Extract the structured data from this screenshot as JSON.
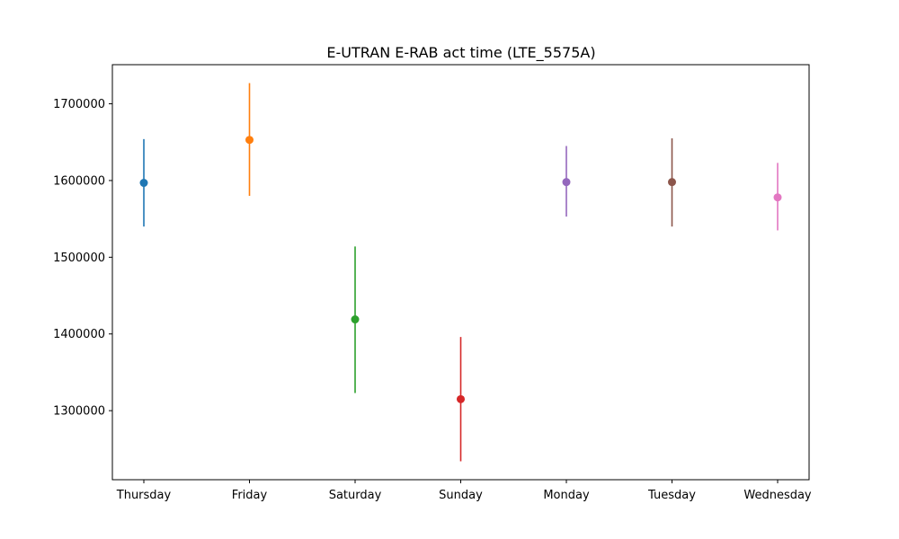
{
  "chart_data": {
    "type": "scatter",
    "title": "E-UTRAN E-RAB act time (LTE_5575A)",
    "xlabel": "",
    "ylabel": "",
    "categories": [
      "Thursday",
      "Friday",
      "Saturday",
      "Sunday",
      "Monday",
      "Tuesday",
      "Wednesday"
    ],
    "series": [
      {
        "category": "Thursday",
        "value": 1597000,
        "low": 1540000,
        "high": 1654000,
        "color": "#1f77b4"
      },
      {
        "category": "Friday",
        "value": 1653000,
        "low": 1580000,
        "high": 1727000,
        "color": "#ff7f0e"
      },
      {
        "category": "Saturday",
        "value": 1419000,
        "low": 1323000,
        "high": 1514000,
        "color": "#2ca02c"
      },
      {
        "category": "Sunday",
        "value": 1315000,
        "low": 1234000,
        "high": 1396000,
        "color": "#d62728"
      },
      {
        "category": "Monday",
        "value": 1598000,
        "low": 1553000,
        "high": 1645000,
        "color": "#9467bd"
      },
      {
        "category": "Tuesday",
        "value": 1598000,
        "low": 1540000,
        "high": 1655000,
        "color": "#8c564b"
      },
      {
        "category": "Wednesday",
        "value": 1578000,
        "low": 1535000,
        "high": 1623000,
        "color": "#e377c2"
      }
    ],
    "yticks": [
      "1300000",
      "1400000",
      "1500000",
      "1600000",
      "1700000"
    ],
    "ylim": [
      1210000,
      1751000
    ],
    "grid": false,
    "legend": "none"
  }
}
